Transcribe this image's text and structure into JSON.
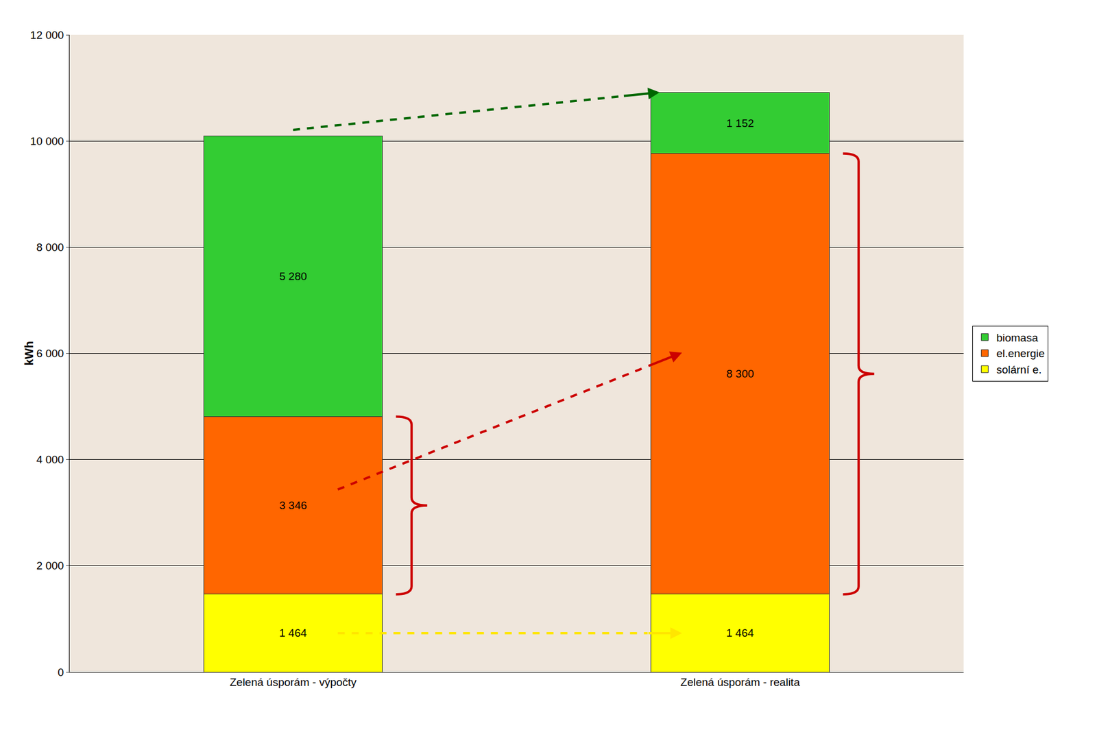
{
  "chart_data": {
    "type": "bar",
    "stacked": true,
    "categories": [
      "Zelená úsporám - výpočty",
      "Zelená úsporám - realita"
    ],
    "y_label": "kWh",
    "series": [
      {
        "name": "solární e.",
        "color": "#ffff00",
        "values": [
          1464,
          1464
        ],
        "value_labels": [
          "1 464",
          "1 464"
        ]
      },
      {
        "name": "el.energie",
        "color": "#ff6600",
        "values": [
          3346,
          8300
        ],
        "value_labels": [
          "3 346",
          "8 300"
        ]
      },
      {
        "name": "biomasa",
        "color": "#33cc33",
        "values": [
          5280,
          1152
        ],
        "value_labels": [
          "5 280",
          "1 152"
        ]
      }
    ],
    "ylim": [
      0,
      12000
    ],
    "yticks": [
      0,
      {
        "value": 2000,
        "label": "2 000"
      },
      {
        "value": 4000,
        "label": "4 000"
      },
      {
        "value": 6000,
        "label": "6 000"
      },
      {
        "value": 8000,
        "label": "8 000"
      },
      {
        "value": 10000,
        "label": "10 000"
      },
      {
        "value": 12000,
        "label": "12 000"
      }
    ],
    "grid": true,
    "legend": "right",
    "data_labels": true
  }
}
